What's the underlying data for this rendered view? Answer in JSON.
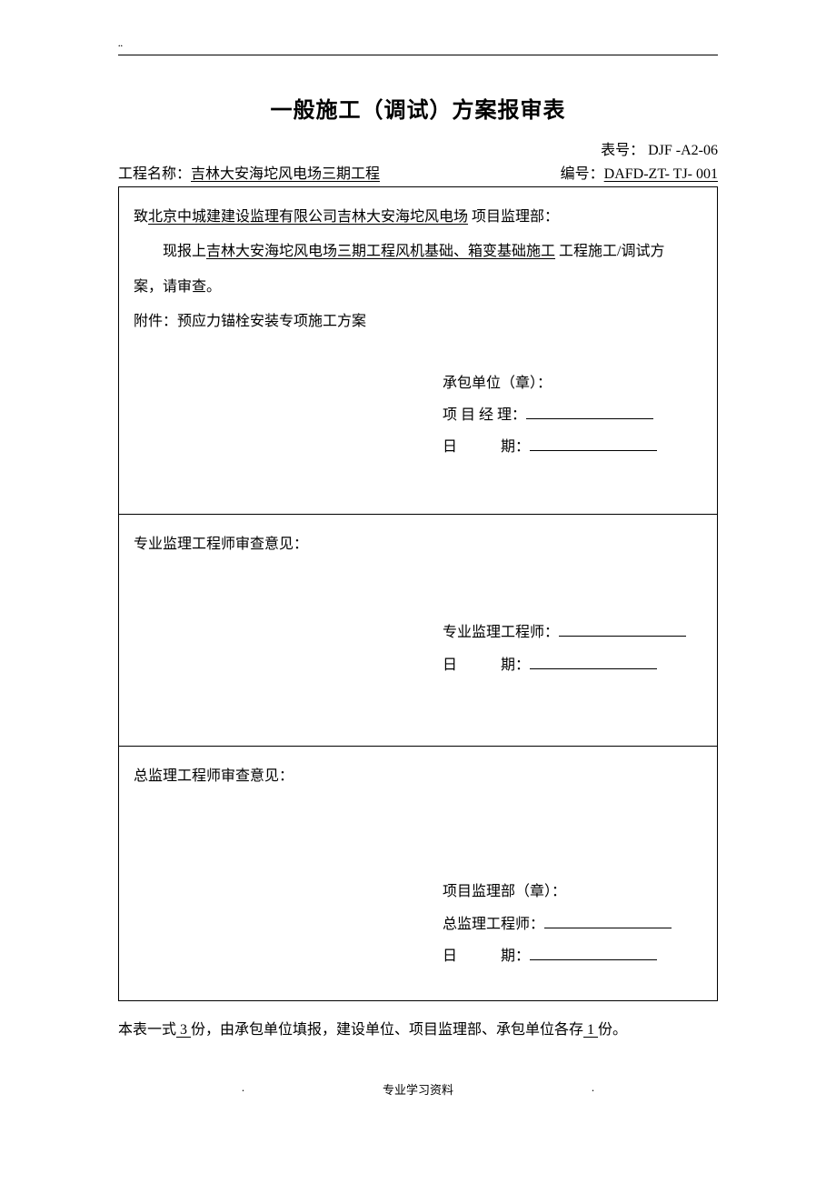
{
  "title": "一般施工（调试）方案报审表",
  "form_number_label": "表号：",
  "form_number": "DJF -A2-06",
  "project_label": "工程名称：",
  "project_name": "吉林大安海坨风电场三期工程",
  "serial_label": "编号：",
  "serial_number": "DAFD-ZT- TJ- 001",
  "section1": {
    "addressee_prefix": "致",
    "addressee": "北京中城建建设监理有限公司吉林大安海坨风电场",
    "addressee_suffix": " 项目监理部：",
    "body_prefix": "现报上",
    "body_underlined": "吉林大安海坨风电场三期工程风机基础、箱变基础施工",
    "body_suffix": " 工程施工/调试方",
    "body_line2": "案，请审查。",
    "attachment": "附件：预应力锚栓安装专项施工方案",
    "sig_unit": "承包单位（章）：",
    "sig_manager": "项 目 经 理：",
    "sig_date": "日　　　期："
  },
  "section2": {
    "heading": "专业监理工程师审查意见：",
    "sig_engineer": "专业监理工程师：",
    "sig_date": "日　　　期："
  },
  "section3": {
    "heading": "总监理工程师审查意见：",
    "sig_dept": "项目监理部（章）：",
    "sig_chief": "总监理工程师：",
    "sig_date": "日　　　期："
  },
  "footer": {
    "prefix": "本表一式",
    "copies": " 3 ",
    "mid": "份，由承包单位填报，建设单位、项目监理部、承包单位各存",
    "each": " 1 ",
    "suffix": "份。"
  },
  "footer_bottom_left": ".",
  "footer_bottom_center": "专业学习资料",
  "footer_bottom_right": "."
}
